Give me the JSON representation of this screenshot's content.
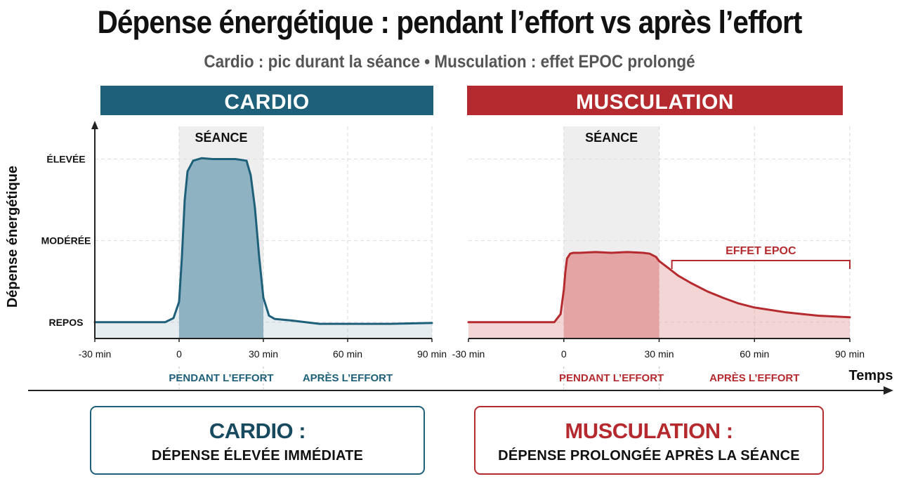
{
  "title": "Dépense énergétique : pendant l’effort vs après l’effort",
  "subtitle": "Cardio : pic durant la séance • Musculation : effet EPOC prolongé",
  "colors": {
    "cardio": "#1e6079",
    "cardio_fill": "#8aafc0",
    "musculation": "#b52a2e",
    "musculation_fill": "#e29a9a",
    "session_shade": "#eeeeee"
  },
  "chart_data": [
    {
      "type": "line",
      "title": "CARDIO",
      "ylabel": "Dépense énergétique",
      "xlabel": "Temps",
      "x_ticks": [
        "-30 min",
        "0",
        "30 min",
        "60 min",
        "90 min"
      ],
      "y_levels": [
        {
          "label": "ÉLEVÉE",
          "value": 3
        },
        {
          "label": "MODÉRÉE",
          "value": 2
        },
        {
          "label": "REPOS",
          "value": 1
        }
      ],
      "xlim": [
        -30,
        90
      ],
      "ylim": [
        0.8,
        3.4
      ],
      "session_label": "SÉANCE",
      "session_range": [
        0,
        30
      ],
      "phase_labels": [
        "PENDANT L’EFFORT",
        "APRÈS L’EFFORT"
      ],
      "series": [
        {
          "x": [
            -30,
            -5,
            -2,
            0,
            1,
            2,
            3,
            5,
            8,
            12,
            20,
            24,
            25.5,
            27,
            28.5,
            30,
            32,
            34,
            40,
            45,
            50,
            60,
            75,
            90
          ],
          "y": [
            1.0,
            1.0,
            1.05,
            1.25,
            1.8,
            2.5,
            2.85,
            2.98,
            3.01,
            3.0,
            3.0,
            2.98,
            2.8,
            2.4,
            1.8,
            1.3,
            1.08,
            1.04,
            1.02,
            1.0,
            0.98,
            0.98,
            0.98,
            0.99
          ]
        }
      ]
    },
    {
      "type": "line",
      "title": "MUSCULATION",
      "xlabel": "Temps",
      "x_ticks": [
        "-30 min",
        "0",
        "30 min",
        "60 min",
        "90 min"
      ],
      "xlim": [
        -30,
        90
      ],
      "ylim": [
        0.8,
        3.4
      ],
      "session_label": "SÉANCE",
      "session_range": [
        0,
        30
      ],
      "annotation": {
        "label": "EFFET EPOC",
        "x_range": [
          34,
          90
        ]
      },
      "phase_labels": [
        "PENDANT L’EFFORT",
        "APRÈS L’EFFORT"
      ],
      "series": [
        {
          "x": [
            -30,
            -3,
            -1,
            0,
            0.5,
            1,
            2,
            3,
            5,
            10,
            15,
            20,
            25,
            27,
            29,
            30,
            33,
            36,
            40,
            45,
            50,
            55,
            60,
            70,
            80,
            90
          ],
          "y": [
            1.0,
            1.0,
            1.1,
            1.4,
            1.62,
            1.78,
            1.84,
            1.85,
            1.85,
            1.86,
            1.85,
            1.86,
            1.85,
            1.84,
            1.8,
            1.75,
            1.66,
            1.57,
            1.48,
            1.38,
            1.3,
            1.23,
            1.18,
            1.12,
            1.08,
            1.06
          ]
        }
      ]
    }
  ],
  "summary": {
    "cardio_title": "CARDIO :",
    "cardio_text": "DÉPENSE ÉLEVÉE IMMÉDIATE",
    "musculation_title": "MUSCULATION :",
    "musculation_text": "DÉPENSE PROLONGÉE APRÈS LA SÉANCE"
  }
}
